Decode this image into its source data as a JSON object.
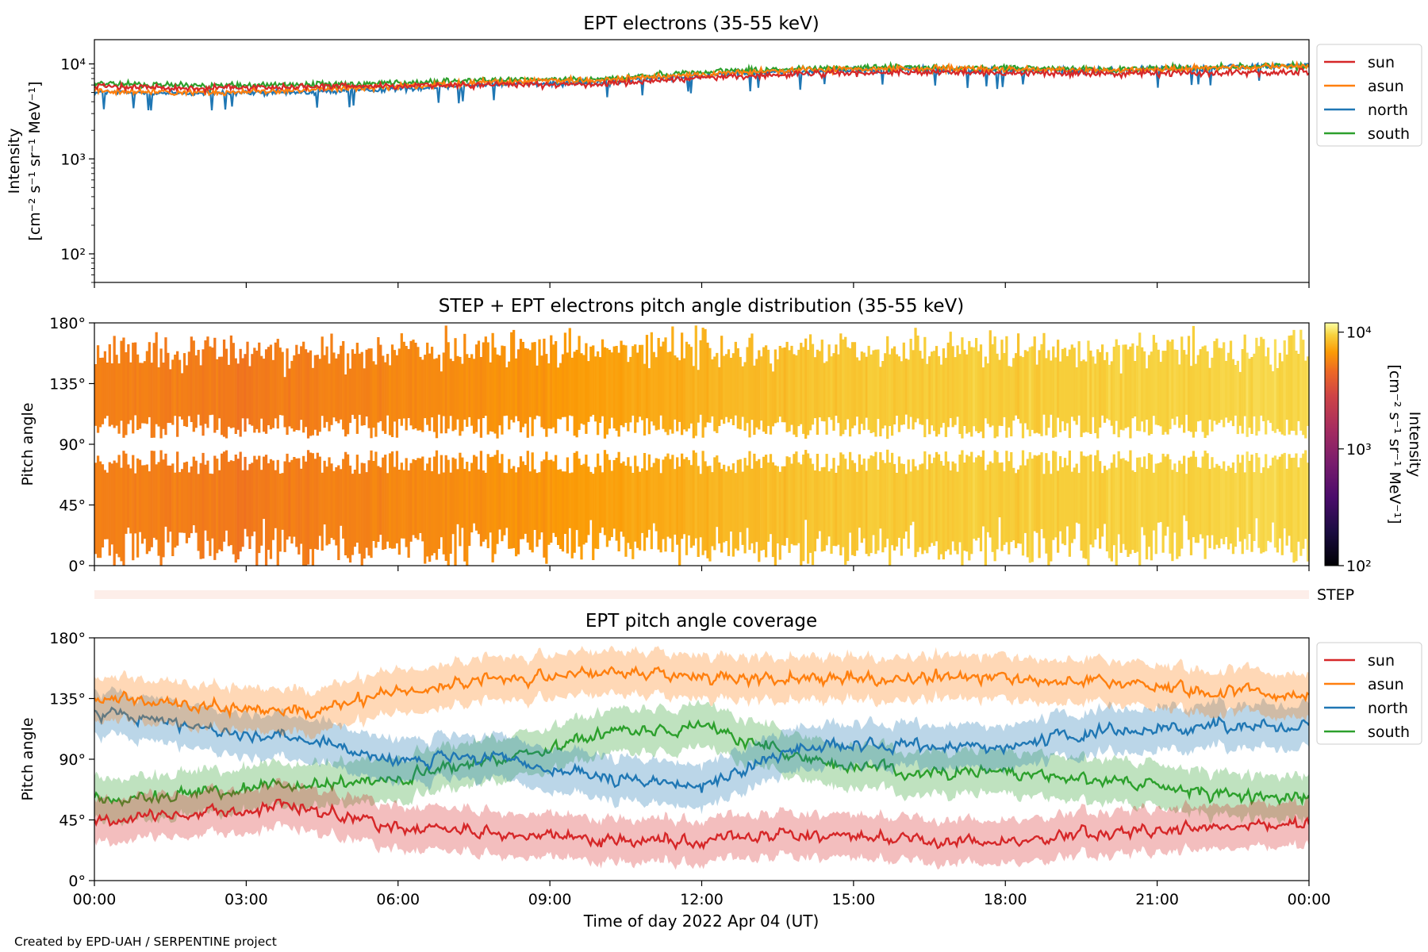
{
  "figure": {
    "footer": "Created by EPD-UAH / SERPENTINE project",
    "xlabel": "Time of day 2022 Apr 04 (UT)",
    "xticks": [
      "00:00",
      "03:00",
      "06:00",
      "09:00",
      "12:00",
      "15:00",
      "18:00",
      "21:00",
      "00:00"
    ]
  },
  "colors": {
    "sun": "#d62728",
    "asun": "#ff7f0e",
    "north": "#1f77b4",
    "south": "#2ca02c"
  },
  "chart_data": [
    {
      "type": "line",
      "title": "EPT electrons (35-55 keV)",
      "ylabel_line1": "Intensity",
      "ylabel_line2": "[cm⁻² s⁻¹ sr⁻¹ MeV⁻¹]",
      "yscale": "log",
      "ylim": [
        50,
        18000
      ],
      "yticks": [
        100,
        1000,
        10000
      ],
      "ytick_labels": [
        "10²",
        "10³",
        "10⁴"
      ],
      "xlim_hours": [
        0,
        24
      ],
      "legend": [
        "sun",
        "asun",
        "north",
        "south"
      ],
      "legend_placement": "outside-right-top",
      "series": [
        {
          "name": "sun",
          "x_hours": [
            0,
            2,
            4,
            6,
            8,
            10,
            12,
            14,
            16,
            18,
            20,
            22,
            24
          ],
          "values": [
            5800,
            5600,
            5700,
            5900,
            6100,
            6000,
            7200,
            7800,
            8200,
            8000,
            7900,
            8100,
            8300
          ]
        },
        {
          "name": "asun",
          "x_hours": [
            0,
            2,
            4,
            6,
            8,
            10,
            12,
            14,
            16,
            18,
            20,
            22,
            24
          ],
          "values": [
            5200,
            5000,
            5300,
            5800,
            6500,
            6700,
            7800,
            8600,
            9000,
            8700,
            8600,
            9000,
            9500
          ]
        },
        {
          "name": "north",
          "x_hours": [
            0,
            2,
            4,
            6,
            8,
            10,
            12,
            14,
            16,
            18,
            20,
            22,
            24
          ],
          "values": [
            5000,
            4900,
            5000,
            5500,
            6200,
            6400,
            7600,
            8400,
            8800,
            8500,
            8500,
            9100,
            9800
          ]
        },
        {
          "name": "south",
          "x_hours": [
            0,
            2,
            4,
            6,
            8,
            10,
            12,
            14,
            16,
            18,
            20,
            22,
            24
          ],
          "values": [
            6200,
            5900,
            6000,
            6300,
            6800,
            6900,
            8300,
            8900,
            9300,
            9000,
            8800,
            9200,
            9600
          ]
        }
      ]
    },
    {
      "type": "heatmap",
      "title": "STEP + EPT electrons pitch angle distribution (35-55 keV)",
      "ylabel": "Pitch angle",
      "ylim": [
        0,
        180
      ],
      "yticks": [
        0,
        45,
        90,
        135,
        180
      ],
      "ytick_labels": [
        "0°",
        "45°",
        "90°",
        "135°",
        "180°"
      ],
      "xlim_hours": [
        0,
        24
      ],
      "colorbar": {
        "label_line1": "Intensity",
        "label_line2": "[cm⁻² s⁻¹ sr⁻¹ MeV⁻¹]",
        "scale": "log",
        "range": [
          100,
          12000
        ],
        "ticks": [
          100,
          1000,
          10000
        ],
        "tick_labels": [
          "10²",
          "10³",
          "10⁴"
        ],
        "colormap": "inferno"
      },
      "intensity_by_hour": {
        "x_hours": [
          0,
          3,
          6,
          9,
          12,
          15,
          18,
          21,
          24
        ],
        "values": [
          5500,
          5200,
          5800,
          6500,
          7800,
          9000,
          9200,
          9400,
          9800
        ]
      },
      "step_strip_label": "STEP"
    },
    {
      "type": "line",
      "title": "EPT pitch angle coverage",
      "ylabel": "Pitch angle",
      "ylim": [
        0,
        180
      ],
      "yticks": [
        0,
        45,
        90,
        135,
        180
      ],
      "ytick_labels": [
        "0°",
        "45°",
        "90°",
        "135°",
        "180°"
      ],
      "xlim_hours": [
        0,
        24
      ],
      "legend": [
        "sun",
        "asun",
        "north",
        "south"
      ],
      "legend_placement": "outside-right-top",
      "shaded_band": true,
      "series": [
        {
          "name": "sun",
          "x_hours": [
            0,
            2,
            4,
            6,
            8,
            10,
            12,
            14,
            16,
            18,
            20,
            22,
            24
          ],
          "values": [
            45,
            50,
            55,
            40,
            35,
            30,
            30,
            35,
            30,
            28,
            35,
            40,
            40
          ]
        },
        {
          "name": "asun",
          "x_hours": [
            0,
            2,
            4,
            6,
            8,
            10,
            12,
            14,
            16,
            18,
            20,
            22,
            24
          ],
          "values": [
            135,
            130,
            125,
            140,
            150,
            155,
            150,
            150,
            150,
            150,
            148,
            140,
            138
          ]
        },
        {
          "name": "north",
          "x_hours": [
            0,
            2,
            4,
            6,
            8,
            10,
            12,
            14,
            16,
            18,
            20,
            22,
            24
          ],
          "values": [
            125,
            115,
            105,
            90,
            90,
            75,
            70,
            100,
            100,
            100,
            110,
            115,
            115
          ]
        },
        {
          "name": "south",
          "x_hours": [
            0,
            2,
            4,
            6,
            8,
            10,
            12,
            14,
            16,
            18,
            20,
            22,
            24
          ],
          "values": [
            60,
            65,
            70,
            75,
            90,
            110,
            115,
            90,
            80,
            80,
            75,
            65,
            60
          ]
        }
      ]
    }
  ]
}
